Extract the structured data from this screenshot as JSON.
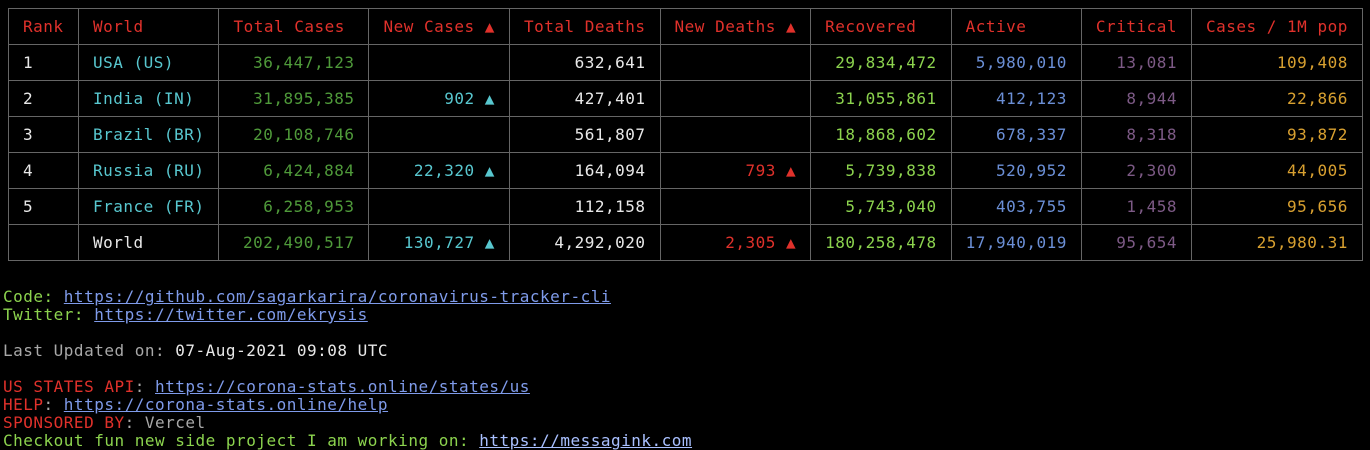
{
  "table": {
    "headers": {
      "rank": "Rank",
      "world": "World",
      "total_cases": "Total Cases",
      "new_cases": "New Cases ▲",
      "total_deaths": "Total Deaths",
      "new_deaths": "New Deaths ▲",
      "recovered": "Recovered",
      "active": "Active",
      "critical": "Critical",
      "per_1m": "Cases / 1M pop"
    },
    "rows": [
      {
        "rank": "1",
        "country": "USA (US)",
        "total_cases": "36,447,123",
        "new_cases": "",
        "total_deaths": "632,641",
        "new_deaths": "",
        "recovered": "29,834,472",
        "active": "5,980,010",
        "critical": "13,081",
        "per_1m": "109,408"
      },
      {
        "rank": "2",
        "country": "India (IN)",
        "total_cases": "31,895,385",
        "new_cases": "902 ▲",
        "total_deaths": "427,401",
        "new_deaths": "",
        "recovered": "31,055,861",
        "active": "412,123",
        "critical": "8,944",
        "per_1m": "22,866"
      },
      {
        "rank": "3",
        "country": "Brazil (BR)",
        "total_cases": "20,108,746",
        "new_cases": "",
        "total_deaths": "561,807",
        "new_deaths": "",
        "recovered": "18,868,602",
        "active": "678,337",
        "critical": "8,318",
        "per_1m": "93,872"
      },
      {
        "rank": "4",
        "country": "Russia (RU)",
        "total_cases": "6,424,884",
        "new_cases": "22,320 ▲",
        "total_deaths": "164,094",
        "new_deaths": "793 ▲",
        "recovered": "5,739,838",
        "active": "520,952",
        "critical": "2,300",
        "per_1m": "44,005"
      },
      {
        "rank": "5",
        "country": "France (FR)",
        "total_cases": "6,258,953",
        "new_cases": "",
        "total_deaths": "112,158",
        "new_deaths": "",
        "recovered": "5,743,040",
        "active": "403,755",
        "critical": "1,458",
        "per_1m": "95,656"
      }
    ],
    "world_row": {
      "rank": "",
      "country": "World",
      "total_cases": "202,490,517",
      "new_cases": "130,727 ▲",
      "total_deaths": "4,292,020",
      "new_deaths": "2,305 ▲",
      "recovered": "180,258,478",
      "active": "17,940,019",
      "critical": "95,654",
      "per_1m": "25,980.31"
    }
  },
  "footer": {
    "code_label": "Code: ",
    "code_url": "https://github.com/sagarkarira/coronavirus-tracker-cli",
    "twitter_label": "Twitter: ",
    "twitter_url": "https://twitter.com/ekrysis",
    "updated_label": "Last Updated on: ",
    "updated_value": "07-Aug-2021 09:08 UTC",
    "states_api_label": "US STATES API",
    "states_api_sep": ": ",
    "states_api_url": "https://corona-stats.online/states/us",
    "help_label": "HELP",
    "help_sep": ": ",
    "help_url": "https://corona-stats.online/help",
    "sponsored_label": "SPONSORED BY",
    "sponsored_sep": ": ",
    "sponsored_value": "Vercel",
    "checkout_label": "Checkout fun new side project I am working on: ",
    "checkout_url": "https://messagink.com"
  },
  "colors": {
    "header": "#e0312b",
    "country": "#58c7cf",
    "total_cases": "#4f9a3a",
    "recovered": "#8cd34e",
    "active": "#6b8fd6",
    "critical": "#7d5a86",
    "per_1m": "#d8a030",
    "link": "#7f9bea",
    "background": "#000000"
  }
}
